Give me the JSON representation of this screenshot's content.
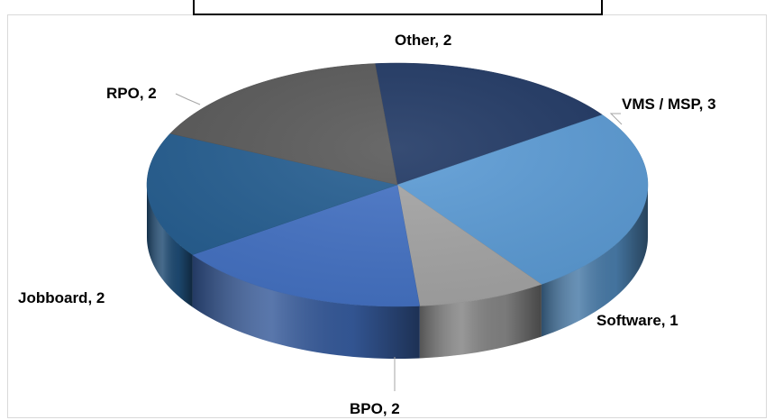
{
  "chart_data": {
    "type": "pie",
    "title": "",
    "slices": [
      {
        "label": "Other",
        "value": 2,
        "color": "#203864",
        "text": "Other, 2"
      },
      {
        "label": "VMS / MSP",
        "value": 3,
        "color": "#5b9bd5",
        "text": "VMS / MSP, 3"
      },
      {
        "label": "Software",
        "value": 1,
        "color": "#a5a5a5",
        "text": "Software, 1"
      },
      {
        "label": "BPO",
        "value": 2,
        "color": "#4472c4",
        "text": "BPO, 2"
      },
      {
        "label": "Jobboard",
        "value": 2,
        "color": "#255e91",
        "text": "Jobboard, 2"
      },
      {
        "label": "RPO",
        "value": 2,
        "color": "#595959",
        "text": "RPO, 2"
      }
    ],
    "legend": "none",
    "style": "3d-pie"
  }
}
